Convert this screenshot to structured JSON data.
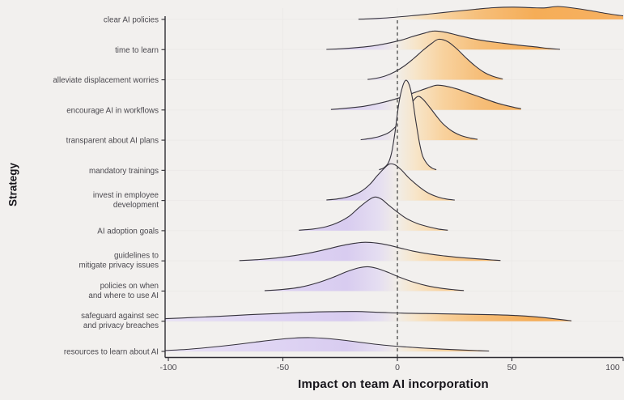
{
  "page": {
    "background": "#f2f0ee"
  },
  "chart_data": {
    "type": "area",
    "variant": "ridgeline",
    "xlabel": "Impact on team AI incorporation",
    "ylabel": "Strategy",
    "x_axis": {
      "range": [
        -100,
        100
      ],
      "ticks": [
        -100,
        -50,
        0,
        50,
        100
      ],
      "tick_labels": [
        "-100",
        "-50",
        "0",
        "50",
        "100"
      ]
    },
    "zero_reference_line": 0,
    "categories": [
      "clear AI policies",
      "time to learn",
      "alleviate displacement worries",
      "encourage AI in workflows",
      "transparent about AI plans",
      "mandatory trainings",
      "invest in employee development",
      "AI adoption goals",
      "guidelines to mitigate privacy issues",
      "policies on when and where to use AI",
      "safeguard against sec and privacy breaches",
      "resources to learn about AI"
    ],
    "series": [
      {
        "label": "clear AI policies",
        "label_lines": [
          "clear AI policies"
        ],
        "points": [
          [
            -17,
            0.3
          ],
          [
            -9,
            1.2
          ],
          [
            -2,
            2.5
          ],
          [
            6,
            4.5
          ],
          [
            15,
            7
          ],
          [
            25,
            10
          ],
          [
            34,
            12.5
          ],
          [
            42,
            14.5
          ],
          [
            50,
            15.2
          ],
          [
            58,
            14.6
          ],
          [
            64,
            14.2
          ],
          [
            70,
            16
          ],
          [
            77,
            14
          ],
          [
            84,
            11
          ],
          [
            91,
            7.5
          ],
          [
            97,
            5
          ],
          [
            103,
            3
          ]
        ]
      },
      {
        "label": "time to learn",
        "label_lines": [
          "time to learn"
        ],
        "points": [
          [
            -31,
            0.3
          ],
          [
            -25,
            1
          ],
          [
            -18,
            2.5
          ],
          [
            -11,
            4.5
          ],
          [
            -4,
            8
          ],
          [
            2,
            12
          ],
          [
            7,
            16.5
          ],
          [
            12,
            20.5
          ],
          [
            16,
            23
          ],
          [
            21,
            21.5
          ],
          [
            26,
            18
          ],
          [
            32,
            14
          ],
          [
            39,
            10.5
          ],
          [
            46,
            8
          ],
          [
            53,
            5.5
          ],
          [
            60,
            3.5
          ],
          [
            66,
            1.5
          ],
          [
            71,
            0.4
          ]
        ]
      },
      {
        "label": "alleviate displacement worries",
        "label_lines": [
          "alleviate displacement worries"
        ],
        "points": [
          [
            -13,
            0.4
          ],
          [
            -9,
            2
          ],
          [
            -5,
            5
          ],
          [
            -1,
            10
          ],
          [
            3,
            17
          ],
          [
            7,
            26
          ],
          [
            11,
            36
          ],
          [
            15,
            45
          ],
          [
            18,
            50
          ],
          [
            22,
            47
          ],
          [
            26,
            38
          ],
          [
            30,
            27
          ],
          [
            34,
            17
          ],
          [
            38,
            9
          ],
          [
            42,
            4
          ],
          [
            46,
            1
          ]
        ]
      },
      {
        "label": "encourage AI in workflows",
        "label_lines": [
          "encourage AI in workflows"
        ],
        "points": [
          [
            -29,
            0.6
          ],
          [
            -23,
            2
          ],
          [
            -16,
            4
          ],
          [
            -10,
            7
          ],
          [
            -4,
            11
          ],
          [
            2,
            16
          ],
          [
            8,
            22
          ],
          [
            13,
            27
          ],
          [
            17,
            30.5
          ],
          [
            21,
            29.5
          ],
          [
            26,
            26
          ],
          [
            31,
            21
          ],
          [
            37,
            15
          ],
          [
            43,
            9
          ],
          [
            49,
            4.5
          ],
          [
            54,
            1.5
          ]
        ]
      },
      {
        "label": "transparent about AI plans",
        "label_lines": [
          "transparent about AI plans"
        ],
        "points": [
          [
            -16,
            0.5
          ],
          [
            -12,
            2
          ],
          [
            -8,
            4.5
          ],
          [
            -4,
            9
          ],
          [
            -1,
            16
          ],
          [
            2,
            27
          ],
          [
            5,
            40
          ],
          [
            7,
            49
          ],
          [
            9,
            54
          ],
          [
            11,
            51
          ],
          [
            14,
            41
          ],
          [
            17,
            30
          ],
          [
            20,
            20
          ],
          [
            24,
            11
          ],
          [
            28,
            5.5
          ],
          [
            32,
            2.5
          ],
          [
            35,
            1
          ]
        ]
      },
      {
        "label": "mandatory trainings",
        "label_lines": [
          "mandatory trainings"
        ],
        "points": [
          [
            -8,
            0.8
          ],
          [
            -6,
            3
          ],
          [
            -4,
            9
          ],
          [
            -2.5,
            22
          ],
          [
            -1,
            48
          ],
          [
            0.5,
            80
          ],
          [
            2,
            101
          ],
          [
            3.5,
            111
          ],
          [
            5,
            107
          ],
          [
            6.5,
            90
          ],
          [
            8,
            62
          ],
          [
            9.5,
            36
          ],
          [
            11,
            18
          ],
          [
            13,
            8
          ],
          [
            15,
            3
          ],
          [
            17,
            0.8
          ]
        ]
      },
      {
        "label": "invest in employee development",
        "label_lines": [
          "invest in employee",
          "development"
        ],
        "points": [
          [
            -31,
            0.6
          ],
          [
            -26,
            2
          ],
          [
            -21,
            5
          ],
          [
            -16,
            11
          ],
          [
            -12,
            20
          ],
          [
            -9,
            30
          ],
          [
            -6,
            39
          ],
          [
            -3.5,
            45
          ],
          [
            -1,
            44
          ],
          [
            2,
            37
          ],
          [
            5,
            28
          ],
          [
            9,
            18
          ],
          [
            13,
            10
          ],
          [
            17,
            5
          ],
          [
            21,
            2
          ],
          [
            25,
            0.5
          ]
        ]
      },
      {
        "label": "AI adoption goals",
        "label_lines": [
          "AI adoption goals"
        ],
        "points": [
          [
            -43,
            0.6
          ],
          [
            -37,
            2
          ],
          [
            -31,
            5
          ],
          [
            -26,
            10
          ],
          [
            -21,
            18
          ],
          [
            -17,
            28
          ],
          [
            -13,
            37
          ],
          [
            -10,
            41.5
          ],
          [
            -7,
            39
          ],
          [
            -4,
            32
          ],
          [
            0,
            23
          ],
          [
            4,
            15
          ],
          [
            9,
            8.5
          ],
          [
            14,
            4.5
          ],
          [
            18,
            2
          ],
          [
            22,
            0.6
          ]
        ]
      },
      {
        "label": "guidelines to mitigate privacy issues",
        "label_lines": [
          "guidelines to",
          "mitigate privacy issues"
        ],
        "points": [
          [
            -69,
            0.4
          ],
          [
            -61,
            1.5
          ],
          [
            -53,
            3.5
          ],
          [
            -45,
            6.5
          ],
          [
            -37,
            10.5
          ],
          [
            -30,
            15
          ],
          [
            -24,
            19
          ],
          [
            -18,
            22
          ],
          [
            -14,
            23
          ],
          [
            -9,
            22
          ],
          [
            -4,
            19.5
          ],
          [
            1,
            16
          ],
          [
            7,
            12
          ],
          [
            14,
            8.5
          ],
          [
            21,
            6
          ],
          [
            28,
            4
          ],
          [
            35,
            2.5
          ],
          [
            41,
            1.2
          ],
          [
            45,
            0.5
          ]
        ]
      },
      {
        "label": "policies on when and where to use AI",
        "label_lines": [
          "policies on when",
          "and where to use AI"
        ],
        "points": [
          [
            -58,
            0.4
          ],
          [
            -50,
            2
          ],
          [
            -42,
            5
          ],
          [
            -35,
            10
          ],
          [
            -28,
            17
          ],
          [
            -22,
            24
          ],
          [
            -17,
            28.5
          ],
          [
            -13,
            30
          ],
          [
            -9,
            28
          ],
          [
            -4,
            23
          ],
          [
            1,
            17
          ],
          [
            7,
            11
          ],
          [
            13,
            6.5
          ],
          [
            19,
            3.5
          ],
          [
            25,
            1.5
          ],
          [
            29,
            0.6
          ]
        ]
      },
      {
        "label": "safeguard against sec and privacy breaches",
        "label_lines": [
          "safeguard against sec",
          "and privacy breaches"
        ],
        "points": [
          [
            -102,
            3
          ],
          [
            -90,
            4.5
          ],
          [
            -78,
            6
          ],
          [
            -65,
            8
          ],
          [
            -52,
            9.5
          ],
          [
            -40,
            11
          ],
          [
            -28,
            11.8
          ],
          [
            -18,
            12
          ],
          [
            -8,
            11
          ],
          [
            2,
            10
          ],
          [
            12,
            9.5
          ],
          [
            22,
            9
          ],
          [
            32,
            8.5
          ],
          [
            42,
            8
          ],
          [
            52,
            7
          ],
          [
            60,
            5.5
          ],
          [
            67,
            3.5
          ],
          [
            73,
            1.5
          ],
          [
            76,
            0.5
          ]
        ]
      },
      {
        "label": "resources to learn about AI",
        "label_lines": [
          "resources to learn about AI"
        ],
        "points": [
          [
            -102,
            1
          ],
          [
            -92,
            2.5
          ],
          [
            -82,
            5
          ],
          [
            -72,
            8
          ],
          [
            -62,
            11.5
          ],
          [
            -53,
            14.5
          ],
          [
            -45,
            16.5
          ],
          [
            -38,
            17
          ],
          [
            -31,
            16
          ],
          [
            -24,
            14
          ],
          [
            -17,
            11.5
          ],
          [
            -10,
            9
          ],
          [
            -3,
            7
          ],
          [
            4,
            5.5
          ],
          [
            12,
            4
          ],
          [
            20,
            2.8
          ],
          [
            28,
            1.8
          ],
          [
            35,
            1
          ],
          [
            40,
            0.5
          ]
        ]
      }
    ]
  },
  "style": {
    "background": "#f2f0ee",
    "curve_stroke": "#35323c",
    "dashed_line_color": "#3c3c3c",
    "axis_color": "#2f2d33",
    "label_color": "#4a484e",
    "grid_color": "#eceae8",
    "gradient_stops": [
      {
        "v": -100,
        "color": "#e9e2f6"
      },
      {
        "v": -50,
        "color": "#ded3f3"
      },
      {
        "v": -22,
        "color": "#d8ccf0"
      },
      {
        "v": -8,
        "color": "#e5def1"
      },
      {
        "v": 0,
        "color": "#f1ede7"
      },
      {
        "v": 8,
        "color": "#f7e5c9"
      },
      {
        "v": 20,
        "color": "#f8d29e"
      },
      {
        "v": 35,
        "color": "#f6bf7b"
      },
      {
        "v": 60,
        "color": "#f5ad57"
      },
      {
        "v": 100,
        "color": "#f7b163"
      }
    ]
  }
}
